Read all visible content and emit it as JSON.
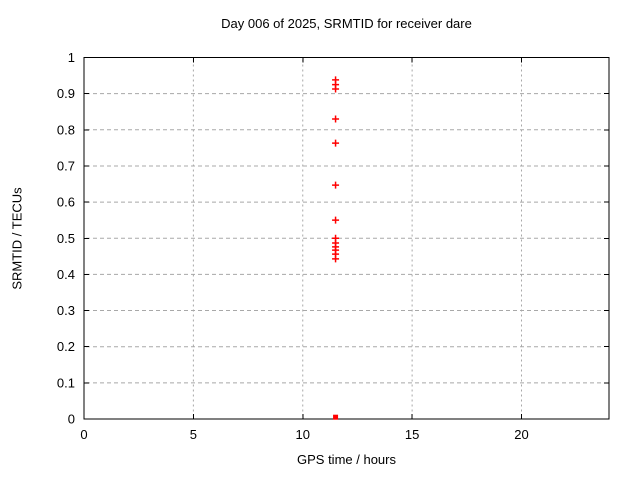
{
  "chart_data": {
    "type": "scatter",
    "title": "Day 006 of 2025, SRMTID for receiver dare",
    "xlabel": "GPS time / hours",
    "ylabel": "SRMTID / TECUs",
    "xlim": [
      0,
      24
    ],
    "ylim": [
      0,
      1
    ],
    "grid": true,
    "legend_position": "none",
    "xticks": [
      {
        "v": 0,
        "label": "0"
      },
      {
        "v": 5,
        "label": "5"
      },
      {
        "v": 10,
        "label": "10"
      },
      {
        "v": 15,
        "label": "15"
      },
      {
        "v": 20,
        "label": "20"
      }
    ],
    "yticks": [
      {
        "v": 0,
        "label": "0"
      },
      {
        "v": 0.1,
        "label": "0.1"
      },
      {
        "v": 0.2,
        "label": "0.2"
      },
      {
        "v": 0.3,
        "label": "0.3"
      },
      {
        "v": 0.4,
        "label": "0.4"
      },
      {
        "v": 0.5,
        "label": "0.5"
      },
      {
        "v": 0.6,
        "label": "0.6"
      },
      {
        "v": 0.7,
        "label": "0.7"
      },
      {
        "v": 0.8,
        "label": "0.8"
      },
      {
        "v": 0.9,
        "label": "0.9"
      },
      {
        "v": 1,
        "label": "1"
      }
    ],
    "series": [
      {
        "name": "srmtid-values",
        "marker": "plus",
        "color": "#ff0000",
        "points": [
          [
            11.5,
            0.938
          ],
          [
            11.5,
            0.925
          ],
          [
            11.5,
            0.913
          ],
          [
            11.5,
            0.83
          ],
          [
            11.5,
            0.763
          ],
          [
            11.5,
            0.647
          ],
          [
            11.5,
            0.55
          ],
          [
            11.5,
            0.5
          ],
          [
            11.5,
            0.487
          ],
          [
            11.5,
            0.476
          ],
          [
            11.5,
            0.467
          ],
          [
            11.5,
            0.456
          ],
          [
            11.5,
            0.443
          ]
        ]
      },
      {
        "name": "zero-level-marker",
        "marker": "filled-square",
        "color": "#ff0000",
        "points": [
          [
            11.5,
            0.005
          ]
        ]
      }
    ]
  },
  "colors": {
    "marker": "#ff0000",
    "grid": "#a8a8a8",
    "axis": "#000000",
    "text": "#000000",
    "background": "#ffffff"
  }
}
